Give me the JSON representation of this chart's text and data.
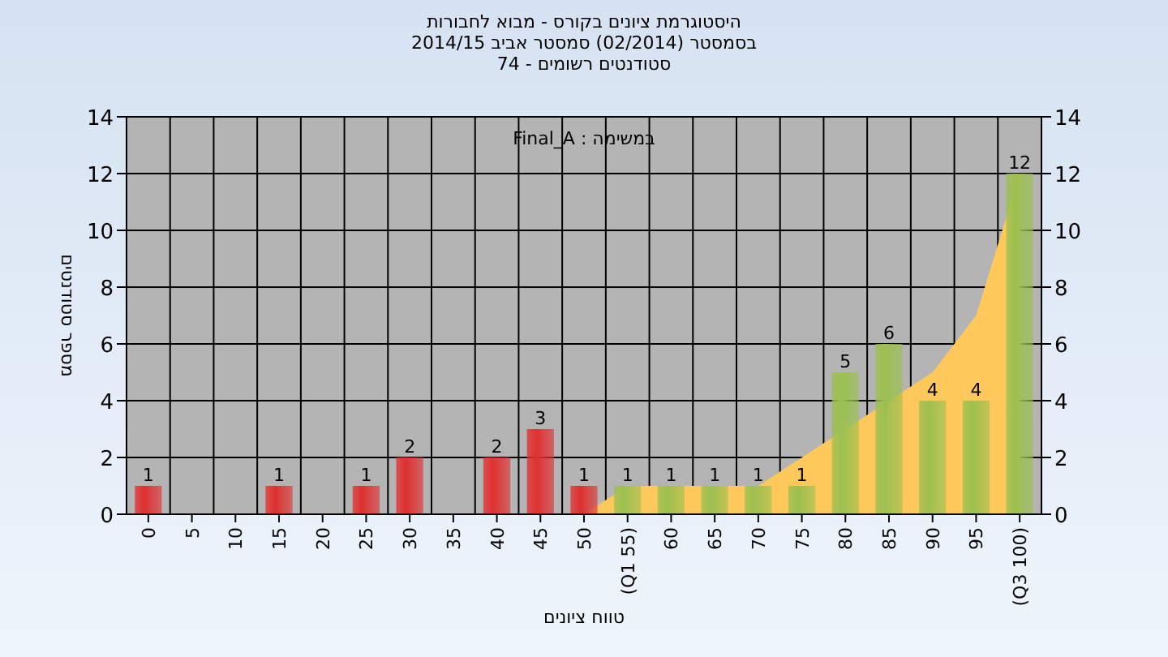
{
  "chart_data": {
    "type": "bar",
    "title": "היסטוגרמת ציונים בקורס - מבוא לחבורות",
    "subtitle": [
      "בסמסטר (02/2014) סמסטר אביב 2014/15",
      "סטודנטים רשומים - 74"
    ],
    "xlabel": "טווח ציונים",
    "ylabel": "מספר סטודנטים",
    "annotations": [
      "במשימה : Final_A"
    ],
    "categories": [
      "0",
      "5",
      "10",
      "15",
      "20",
      "25",
      "30",
      "35",
      "40",
      "45",
      "50",
      "(Q1 55)",
      "60",
      "65",
      "70",
      "75",
      "80",
      "85",
      "90",
      "95",
      "(Q3 100)"
    ],
    "series": [
      {
        "type": "area",
        "color": "#ffc85a",
        "values": [
          null,
          null,
          null,
          null,
          null,
          null,
          null,
          null,
          null,
          null,
          0,
          1,
          1,
          1,
          1,
          2,
          null,
          null,
          5,
          7,
          12
        ]
      },
      {
        "type": "bar",
        "colors": [
          "#e03030",
          "#e03030",
          "#e03030",
          "#e03030",
          "#e03030",
          "#e03030",
          "#e03030",
          "#e03030",
          "#e03030",
          "#e03030",
          "#e03030",
          "#9cc050",
          "#9cc050",
          "#9cc050",
          "#9cc050",
          "#9cc050",
          "#9cc050",
          "#9cc050",
          "#9cc050",
          "#9cc050",
          "#9cc050"
        ],
        "values": [
          1,
          0,
          0,
          1,
          0,
          1,
          2,
          0,
          2,
          3,
          1,
          1,
          1,
          1,
          1,
          1,
          5,
          6,
          4,
          4,
          12
        ],
        "value_labels": [
          "1",
          null,
          null,
          "1",
          null,
          "1",
          "2",
          null,
          "2",
          "3",
          "1",
          "1",
          "1",
          "1",
          "1",
          "1",
          "5",
          "6",
          "4",
          "4",
          "12"
        ]
      }
    ],
    "ylim": [
      0,
      14
    ],
    "yticks": [
      0,
      2,
      4,
      6,
      8,
      10,
      12,
      14
    ],
    "y2lim": [
      0,
      14
    ],
    "y2ticks": [
      0,
      2,
      4,
      6,
      8,
      10,
      12,
      14
    ],
    "grid": true
  }
}
